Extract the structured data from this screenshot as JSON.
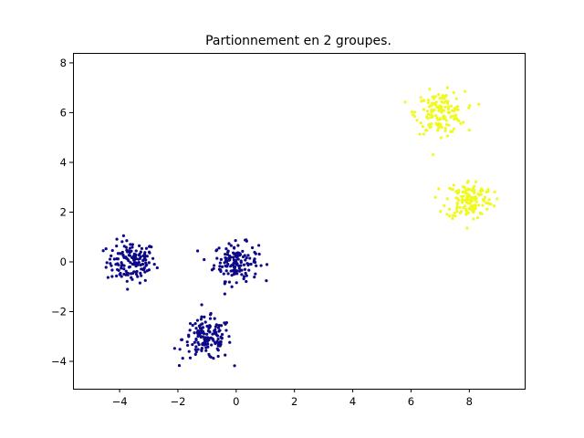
{
  "chart_data": {
    "type": "scatter",
    "title": "Partionnement en 2 groupes.",
    "xlabel": "",
    "ylabel": "",
    "xlim": [
      -5.6,
      9.9
    ],
    "ylim": [
      -5.1,
      8.4
    ],
    "x_ticks": [
      -4,
      -2,
      0,
      2,
      4,
      6,
      8
    ],
    "y_ticks": [
      -4,
      -2,
      0,
      2,
      4,
      6,
      8
    ],
    "x_tick_labels": [
      "−4",
      "−2",
      "0",
      "2",
      "4",
      "6",
      "8"
    ],
    "y_tick_labels": [
      "−4",
      "−2",
      "0",
      "2",
      "4",
      "6",
      "8"
    ],
    "grid": false,
    "legend": "none",
    "groups": [
      {
        "label": "0",
        "color": "#0d0887",
        "blobs": [
          {
            "center": [
              -3.6,
              0.0
            ],
            "spread": 0.42,
            "count": 150
          },
          {
            "center": [
              0.0,
              0.0
            ],
            "spread": 0.38,
            "count": 150
          },
          {
            "center": [
              -1.0,
              -3.1
            ],
            "spread": 0.42,
            "count": 150
          }
        ]
      },
      {
        "label": "1",
        "color": "#f0f921",
        "blobs": [
          {
            "center": [
              7.0,
              6.0
            ],
            "spread": 0.42,
            "count": 150
          },
          {
            "center": [
              8.0,
              2.5
            ],
            "spread": 0.4,
            "count": 150
          }
        ]
      }
    ]
  }
}
